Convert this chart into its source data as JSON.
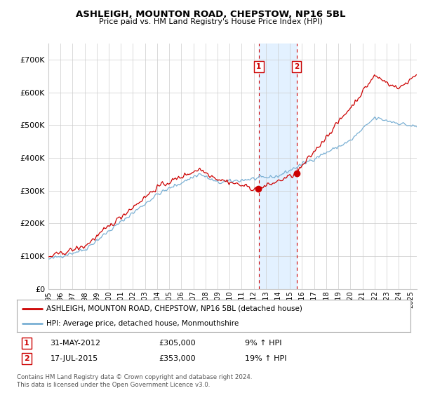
{
  "title": "ASHLEIGH, MOUNTON ROAD, CHEPSTOW, NP16 5BL",
  "subtitle": "Price paid vs. HM Land Registry's House Price Index (HPI)",
  "ylabel_ticks": [
    "£0",
    "£100K",
    "£200K",
    "£300K",
    "£400K",
    "£500K",
    "£600K",
    "£700K"
  ],
  "ylim": [
    0,
    750000
  ],
  "xlim_start": 1995,
  "xlim_end": 2025.5,
  "sale1_date": 2012.42,
  "sale1_price": 305000,
  "sale1_label": "1",
  "sale2_date": 2015.54,
  "sale2_price": 353000,
  "sale2_label": "2",
  "legend_line1": "ASHLEIGH, MOUNTON ROAD, CHEPSTOW, NP16 5BL (detached house)",
  "legend_line2": "HPI: Average price, detached house, Monmouthshire",
  "footnote": "Contains HM Land Registry data © Crown copyright and database right 2024.\nThis data is licensed under the Open Government Licence v3.0.",
  "red_color": "#cc0000",
  "blue_color": "#7ab0d4",
  "shade_color": "#ddeeff",
  "grid_color": "#cccccc",
  "bg_color": "#ffffff"
}
